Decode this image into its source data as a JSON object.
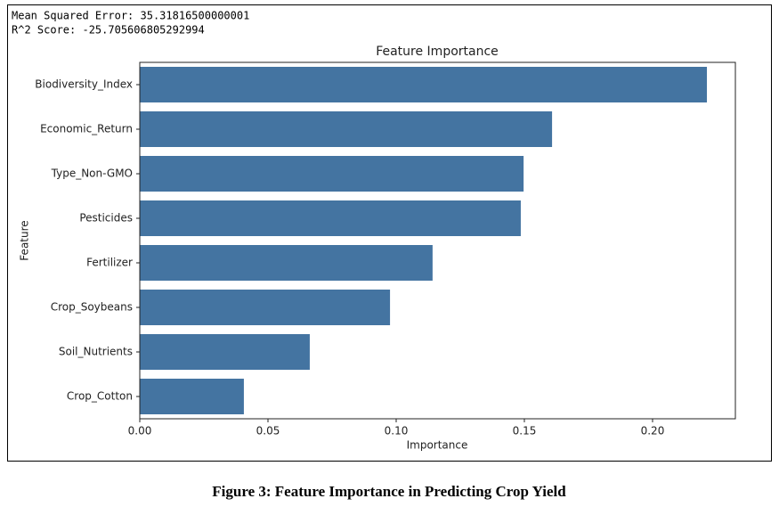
{
  "document": {
    "output_lines": [
      "Mean Squared Error: 35.31816500000001",
      "R^2 Score: -25.705606805292994"
    ],
    "caption": "Figure 3: Feature Importance in Predicting Crop Yield"
  },
  "chart_data": {
    "type": "bar",
    "orientation": "horizontal",
    "title": "Feature Importance",
    "x_label": "Importance",
    "y_label": "Feature",
    "categories": [
      "Biodiversity_Index",
      "Economic_Return",
      "Type_Non-GMO",
      "Pesticides",
      "Fertilizer",
      "Crop_Soybeans",
      "Soil_Nutrients",
      "Crop_Cotton"
    ],
    "values": [
      0.2212,
      0.1608,
      0.1497,
      0.1486,
      0.1142,
      0.0976,
      0.0663,
      0.0406
    ],
    "color": "#4474a1",
    "xlim": [
      0,
      0.2323
    ],
    "xticks": [
      {
        "value": 0,
        "label": "0.00"
      },
      {
        "value": 0.05,
        "label": "0.05"
      },
      {
        "value": 0.1,
        "label": "0.10"
      },
      {
        "value": 0.15,
        "label": "0.15"
      },
      {
        "value": 0.2,
        "label": "0.20"
      }
    ]
  }
}
